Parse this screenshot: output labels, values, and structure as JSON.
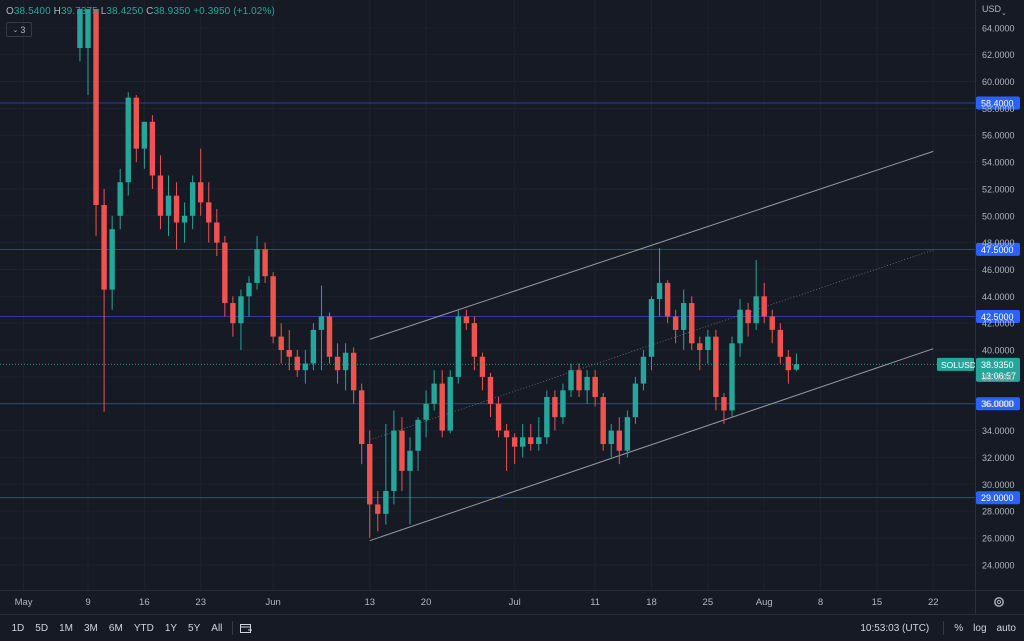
{
  "ohlc": {
    "o_key": "O",
    "o": "38.5400",
    "h_key": "H",
    "h": "39.7375",
    "l_key": "L",
    "l": "38.4250",
    "c_key": "C",
    "c": "38.9350",
    "change": "+0.3950 (+1.02%)"
  },
  "indicators": {
    "count": "3"
  },
  "currency": "USD",
  "toolbar": {
    "ranges": [
      "1D",
      "5D",
      "1M",
      "3M",
      "6M",
      "YTD",
      "1Y",
      "5Y",
      "All"
    ],
    "time": "10:53:03 (UTC)",
    "percent": "%",
    "log": "log",
    "auto": "auto"
  },
  "colors": {
    "bg": "#161a25",
    "up": "#26a69a",
    "down": "#ef5350",
    "hline": "#3d5afe",
    "label": "#2962ff",
    "channel": "#9598a1"
  },
  "chart_data": {
    "type": "candlestick",
    "symbol_label": "SOLUSD",
    "last_price_label": "38.9350",
    "countdown": "13:06:57",
    "y_ticks": [
      24,
      26,
      28,
      30,
      32,
      34,
      36,
      38,
      40,
      42,
      44,
      46,
      48,
      50,
      52,
      54,
      56,
      58,
      60,
      62,
      64
    ],
    "y_tick_labels": [
      "24.0000",
      "26.0000",
      "28.0000",
      "30.0000",
      "32.0000",
      "34.0000",
      "36.0000",
      "38.0000",
      "40.0000",
      "42.0000",
      "44.0000",
      "46.0000",
      "48.0000",
      "50.0000",
      "52.0000",
      "54.0000",
      "56.0000",
      "58.0000",
      "60.0000",
      "62.0000",
      "64.0000"
    ],
    "ylim": [
      22.2,
      65.4
    ],
    "x_ticks": [
      {
        "label": "May",
        "date": "2022-05-01"
      },
      {
        "label": "9",
        "date": "2022-05-09"
      },
      {
        "label": "16",
        "date": "2022-05-16"
      },
      {
        "label": "23",
        "date": "2022-05-23"
      },
      {
        "label": "Jun",
        "date": "2022-06-01"
      },
      {
        "label": "13",
        "date": "2022-06-13"
      },
      {
        "label": "20",
        "date": "2022-06-20"
      },
      {
        "label": "Jul",
        "date": "2022-07-01"
      },
      {
        "label": "11",
        "date": "2022-07-11"
      },
      {
        "label": "18",
        "date": "2022-07-18"
      },
      {
        "label": "25",
        "date": "2022-07-25"
      },
      {
        "label": "Aug",
        "date": "2022-08-01"
      },
      {
        "label": "8",
        "date": "2022-08-08"
      },
      {
        "label": "15",
        "date": "2022-08-15"
      },
      {
        "label": "22",
        "date": "2022-08-22"
      }
    ],
    "horizontal_levels": [
      {
        "value": 58.4,
        "label": "58.4000"
      },
      {
        "value": 47.5,
        "label": "47.5000"
      },
      {
        "value": 42.5,
        "label": "42.5000"
      },
      {
        "value": 36.0,
        "label": "36.0000"
      },
      {
        "value": 29.0,
        "label": "29.0000"
      }
    ],
    "channel": {
      "lower": [
        {
          "date": "2022-06-13",
          "value": 25.8
        },
        {
          "date": "2022-08-22",
          "value": 40.1
        }
      ],
      "upper": [
        {
          "date": "2022-06-13",
          "value": 40.8
        },
        {
          "date": "2022-08-22",
          "value": 54.8
        }
      ]
    },
    "candles": [
      {
        "date": "2022-05-08",
        "o": 62.5,
        "h": 65.4,
        "l": 61.5,
        "c": 65.4
      },
      {
        "date": "2022-05-09",
        "o": 62.5,
        "h": 65.4,
        "l": 59.0,
        "c": 65.4
      },
      {
        "date": "2022-05-10",
        "o": 65.4,
        "h": 65.4,
        "l": 48.5,
        "c": 50.8
      },
      {
        "date": "2022-05-11",
        "o": 50.8,
        "h": 52.0,
        "l": 35.4,
        "c": 44.5
      },
      {
        "date": "2022-05-12",
        "o": 44.5,
        "h": 50.0,
        "l": 43.0,
        "c": 49.0
      },
      {
        "date": "2022-05-13",
        "o": 50.0,
        "h": 53.5,
        "l": 49.0,
        "c": 52.5
      },
      {
        "date": "2022-05-14",
        "o": 52.5,
        "h": 59.2,
        "l": 51.5,
        "c": 58.8
      },
      {
        "date": "2022-05-15",
        "o": 58.8,
        "h": 59.0,
        "l": 54.0,
        "c": 55.0
      },
      {
        "date": "2022-05-16",
        "o": 55.0,
        "h": 57.0,
        "l": 53.5,
        "c": 57.0
      },
      {
        "date": "2022-05-17",
        "o": 57.0,
        "h": 57.5,
        "l": 52.0,
        "c": 53.0
      },
      {
        "date": "2022-05-18",
        "o": 53.0,
        "h": 54.5,
        "l": 49.0,
        "c": 50.0
      },
      {
        "date": "2022-05-19",
        "o": 50.0,
        "h": 53.0,
        "l": 48.5,
        "c": 51.5
      },
      {
        "date": "2022-05-20",
        "o": 51.5,
        "h": 52.5,
        "l": 47.5,
        "c": 49.5
      },
      {
        "date": "2022-05-21",
        "o": 49.5,
        "h": 51.0,
        "l": 48.0,
        "c": 50.0
      },
      {
        "date": "2022-05-22",
        "o": 50.0,
        "h": 53.0,
        "l": 49.0,
        "c": 52.5
      },
      {
        "date": "2022-05-23",
        "o": 52.5,
        "h": 55.0,
        "l": 50.0,
        "c": 51.0
      },
      {
        "date": "2022-05-24",
        "o": 51.0,
        "h": 52.5,
        "l": 48.0,
        "c": 49.5
      },
      {
        "date": "2022-05-25",
        "o": 49.5,
        "h": 50.5,
        "l": 47.0,
        "c": 48.0
      },
      {
        "date": "2022-05-26",
        "o": 48.0,
        "h": 48.5,
        "l": 42.5,
        "c": 43.5
      },
      {
        "date": "2022-05-27",
        "o": 43.5,
        "h": 44.0,
        "l": 41.0,
        "c": 42.0
      },
      {
        "date": "2022-05-28",
        "o": 42.0,
        "h": 44.5,
        "l": 40.0,
        "c": 44.0
      },
      {
        "date": "2022-05-29",
        "o": 44.0,
        "h": 45.5,
        "l": 42.5,
        "c": 45.0
      },
      {
        "date": "2022-05-30",
        "o": 45.0,
        "h": 48.5,
        "l": 44.5,
        "c": 47.5
      },
      {
        "date": "2022-05-31",
        "o": 47.5,
        "h": 48.0,
        "l": 45.0,
        "c": 45.5
      },
      {
        "date": "2022-06-01",
        "o": 45.5,
        "h": 45.8,
        "l": 40.5,
        "c": 41.0
      },
      {
        "date": "2022-06-02",
        "o": 41.0,
        "h": 42.0,
        "l": 39.0,
        "c": 40.0
      },
      {
        "date": "2022-06-03",
        "o": 40.0,
        "h": 41.5,
        "l": 38.5,
        "c": 39.5
      },
      {
        "date": "2022-06-04",
        "o": 39.5,
        "h": 40.0,
        "l": 38.0,
        "c": 38.5
      },
      {
        "date": "2022-06-05",
        "o": 38.5,
        "h": 40.0,
        "l": 37.5,
        "c": 39.0
      },
      {
        "date": "2022-06-06",
        "o": 39.0,
        "h": 42.0,
        "l": 38.5,
        "c": 41.5
      },
      {
        "date": "2022-06-07",
        "o": 41.5,
        "h": 44.8,
        "l": 38.5,
        "c": 42.5
      },
      {
        "date": "2022-06-08",
        "o": 42.5,
        "h": 42.8,
        "l": 39.0,
        "c": 39.5
      },
      {
        "date": "2022-06-09",
        "o": 39.5,
        "h": 40.5,
        "l": 37.5,
        "c": 38.5
      },
      {
        "date": "2022-06-10",
        "o": 38.5,
        "h": 40.5,
        "l": 37.0,
        "c": 39.8
      },
      {
        "date": "2022-06-11",
        "o": 39.8,
        "h": 40.2,
        "l": 36.0,
        "c": 37.0
      },
      {
        "date": "2022-06-12",
        "o": 37.0,
        "h": 37.5,
        "l": 31.5,
        "c": 33.0
      },
      {
        "date": "2022-06-13",
        "o": 33.0,
        "h": 34.0,
        "l": 26.0,
        "c": 28.5
      },
      {
        "date": "2022-06-14",
        "o": 28.5,
        "h": 29.5,
        "l": 26.5,
        "c": 27.8
      },
      {
        "date": "2022-06-15",
        "o": 27.8,
        "h": 34.5,
        "l": 27.0,
        "c": 29.5
      },
      {
        "date": "2022-06-16",
        "o": 29.5,
        "h": 35.5,
        "l": 28.5,
        "c": 34.0
      },
      {
        "date": "2022-06-17",
        "o": 34.0,
        "h": 35.0,
        "l": 29.5,
        "c": 31.0
      },
      {
        "date": "2022-06-18",
        "o": 31.0,
        "h": 33.5,
        "l": 27.0,
        "c": 32.5
      },
      {
        "date": "2022-06-19",
        "o": 32.5,
        "h": 35.0,
        "l": 31.0,
        "c": 34.8
      },
      {
        "date": "2022-06-20",
        "o": 34.8,
        "h": 37.0,
        "l": 33.5,
        "c": 36.0
      },
      {
        "date": "2022-06-21",
        "o": 36.0,
        "h": 38.5,
        "l": 35.5,
        "c": 37.5
      },
      {
        "date": "2022-06-22",
        "o": 37.5,
        "h": 38.5,
        "l": 33.5,
        "c": 34.0
      },
      {
        "date": "2022-06-23",
        "o": 34.0,
        "h": 38.5,
        "l": 33.8,
        "c": 38.0
      },
      {
        "date": "2022-06-24",
        "o": 38.0,
        "h": 43.0,
        "l": 37.5,
        "c": 42.5
      },
      {
        "date": "2022-06-25",
        "o": 42.5,
        "h": 43.0,
        "l": 41.5,
        "c": 42.0
      },
      {
        "date": "2022-06-26",
        "o": 42.0,
        "h": 42.5,
        "l": 38.5,
        "c": 39.5
      },
      {
        "date": "2022-06-27",
        "o": 39.5,
        "h": 39.8,
        "l": 37.0,
        "c": 38.0
      },
      {
        "date": "2022-06-28",
        "o": 38.0,
        "h": 38.3,
        "l": 35.0,
        "c": 36.0
      },
      {
        "date": "2022-06-29",
        "o": 36.0,
        "h": 36.5,
        "l": 33.5,
        "c": 34.0
      },
      {
        "date": "2022-06-30",
        "o": 34.0,
        "h": 34.5,
        "l": 31.0,
        "c": 33.5
      },
      {
        "date": "2022-07-01",
        "o": 33.5,
        "h": 33.8,
        "l": 31.5,
        "c": 32.8
      },
      {
        "date": "2022-07-02",
        "o": 32.8,
        "h": 34.5,
        "l": 32.0,
        "c": 33.5
      },
      {
        "date": "2022-07-03",
        "o": 33.5,
        "h": 34.5,
        "l": 32.5,
        "c": 33.0
      },
      {
        "date": "2022-07-04",
        "o": 33.0,
        "h": 35.0,
        "l": 32.5,
        "c": 33.5
      },
      {
        "date": "2022-07-05",
        "o": 33.5,
        "h": 37.0,
        "l": 33.0,
        "c": 36.5
      },
      {
        "date": "2022-07-06",
        "o": 36.5,
        "h": 37.0,
        "l": 34.0,
        "c": 35.0
      },
      {
        "date": "2022-07-07",
        "o": 35.0,
        "h": 37.5,
        "l": 34.5,
        "c": 37.0
      },
      {
        "date": "2022-07-08",
        "o": 37.0,
        "h": 39.0,
        "l": 36.5,
        "c": 38.5
      },
      {
        "date": "2022-07-09",
        "o": 38.5,
        "h": 39.0,
        "l": 36.5,
        "c": 37.0
      },
      {
        "date": "2022-07-10",
        "o": 37.0,
        "h": 38.5,
        "l": 36.0,
        "c": 38.0
      },
      {
        "date": "2022-07-11",
        "o": 38.0,
        "h": 38.5,
        "l": 35.8,
        "c": 36.5
      },
      {
        "date": "2022-07-12",
        "o": 36.5,
        "h": 36.8,
        "l": 32.5,
        "c": 33.0
      },
      {
        "date": "2022-07-13",
        "o": 33.0,
        "h": 34.5,
        "l": 32.0,
        "c": 34.0
      },
      {
        "date": "2022-07-14",
        "o": 34.0,
        "h": 35.0,
        "l": 31.5,
        "c": 32.5
      },
      {
        "date": "2022-07-15",
        "o": 32.5,
        "h": 35.5,
        "l": 32.0,
        "c": 35.0
      },
      {
        "date": "2022-07-16",
        "o": 35.0,
        "h": 38.0,
        "l": 34.5,
        "c": 37.5
      },
      {
        "date": "2022-07-17",
        "o": 37.5,
        "h": 40.0,
        "l": 37.0,
        "c": 39.5
      },
      {
        "date": "2022-07-18",
        "o": 39.5,
        "h": 44.0,
        "l": 38.5,
        "c": 43.8
      },
      {
        "date": "2022-07-19",
        "o": 43.8,
        "h": 47.6,
        "l": 42.5,
        "c": 45.0
      },
      {
        "date": "2022-07-20",
        "o": 45.0,
        "h": 45.2,
        "l": 42.0,
        "c": 42.5
      },
      {
        "date": "2022-07-21",
        "o": 42.5,
        "h": 43.0,
        "l": 40.5,
        "c": 41.5
      },
      {
        "date": "2022-07-22",
        "o": 41.5,
        "h": 44.5,
        "l": 40.0,
        "c": 43.5
      },
      {
        "date": "2022-07-23",
        "o": 43.5,
        "h": 44.0,
        "l": 40.0,
        "c": 40.5
      },
      {
        "date": "2022-07-24",
        "o": 40.5,
        "h": 41.0,
        "l": 38.5,
        "c": 40.0
      },
      {
        "date": "2022-07-25",
        "o": 40.0,
        "h": 41.5,
        "l": 39.0,
        "c": 41.0
      },
      {
        "date": "2022-07-26",
        "o": 41.0,
        "h": 41.5,
        "l": 35.5,
        "c": 36.5
      },
      {
        "date": "2022-07-27",
        "o": 36.5,
        "h": 36.8,
        "l": 34.5,
        "c": 35.5
      },
      {
        "date": "2022-07-28",
        "o": 35.5,
        "h": 41.0,
        "l": 35.0,
        "c": 40.5
      },
      {
        "date": "2022-07-29",
        "o": 40.5,
        "h": 43.8,
        "l": 39.5,
        "c": 43.0
      },
      {
        "date": "2022-07-30",
        "o": 43.0,
        "h": 43.5,
        "l": 41.0,
        "c": 42.0
      },
      {
        "date": "2022-07-31",
        "o": 42.0,
        "h": 46.7,
        "l": 41.5,
        "c": 44.0
      },
      {
        "date": "2022-08-01",
        "o": 44.0,
        "h": 45.0,
        "l": 42.0,
        "c": 42.5
      },
      {
        "date": "2022-08-02",
        "o": 42.5,
        "h": 43.0,
        "l": 40.5,
        "c": 41.5
      },
      {
        "date": "2022-08-03",
        "o": 41.5,
        "h": 42.0,
        "l": 39.0,
        "c": 39.5
      },
      {
        "date": "2022-08-04",
        "o": 39.5,
        "h": 40.0,
        "l": 37.5,
        "c": 38.5
      },
      {
        "date": "2022-08-05",
        "o": 38.54,
        "h": 39.7375,
        "l": 38.425,
        "c": 38.935
      }
    ]
  }
}
